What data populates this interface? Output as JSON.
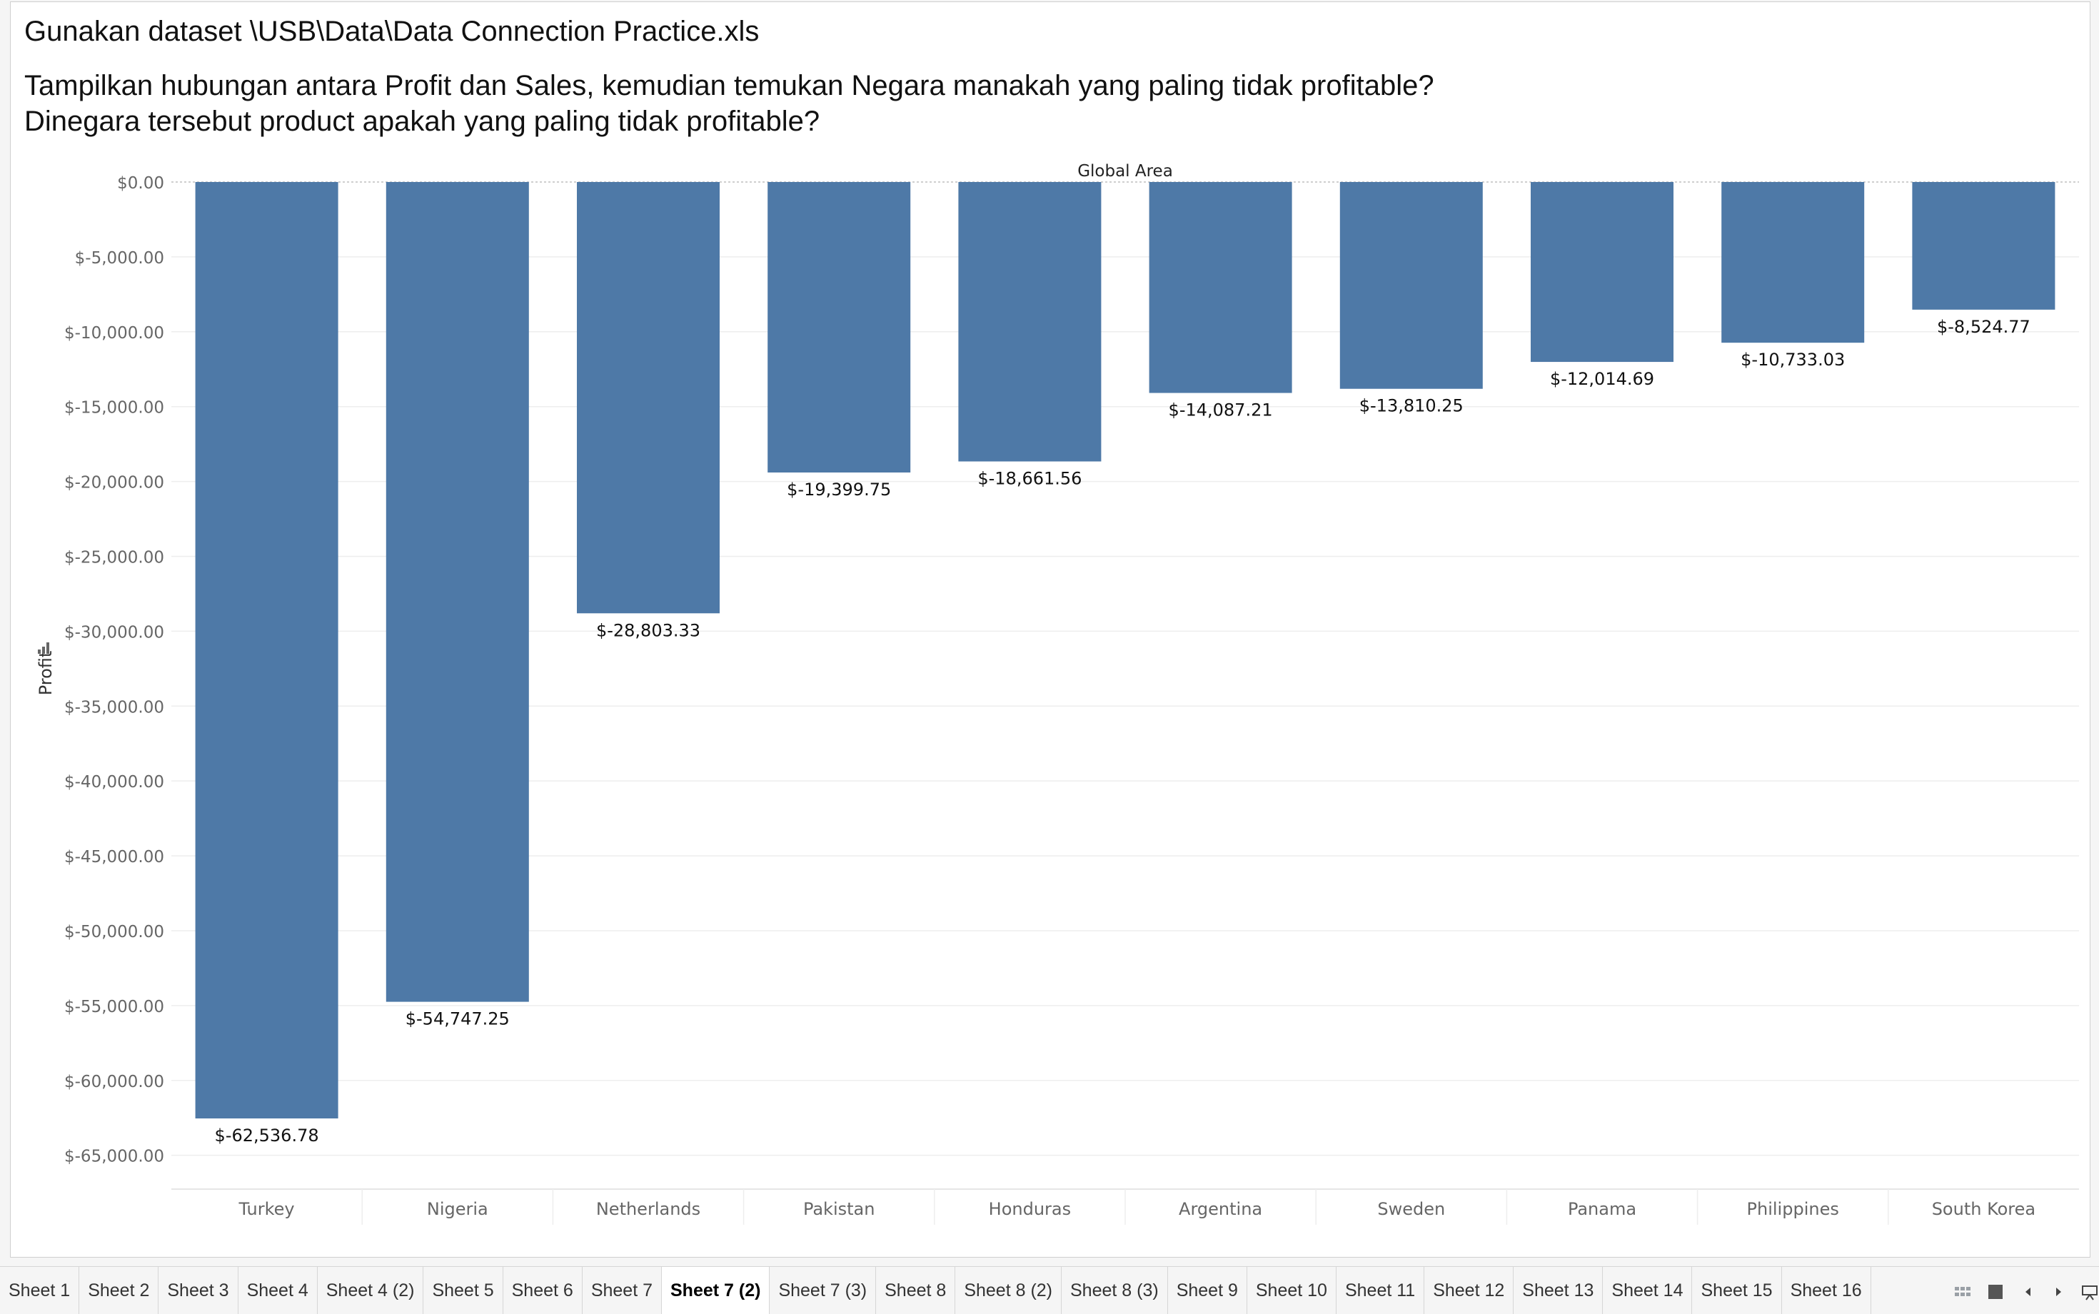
{
  "sheet": {
    "title_line1": "Gunakan dataset \\USB\\Data\\Data Connection Practice.xls",
    "title_line2": "Tampilkan hubungan antara Profit dan Sales, kemudian temukan Negara manakah yang paling tidak profitable?",
    "title_line3": "Dinegara tersebut product apakah yang paling tidak profitable?"
  },
  "chart_data": {
    "type": "bar",
    "header": "Global Area",
    "ylabel": "Profit",
    "xlabel": "",
    "ylim": [
      -67000,
      0
    ],
    "yticks": [
      0,
      -5000,
      -10000,
      -15000,
      -20000,
      -25000,
      -30000,
      -35000,
      -40000,
      -45000,
      -50000,
      -55000,
      -60000,
      -65000
    ],
    "ytick_labels": [
      "$0.00",
      "$-5,000.00",
      "$-10,000.00",
      "$-15,000.00",
      "$-20,000.00",
      "$-25,000.00",
      "$-30,000.00",
      "$-35,000.00",
      "$-40,000.00",
      "$-45,000.00",
      "$-50,000.00",
      "$-55,000.00",
      "$-60,000.00",
      "$-65,000.00"
    ],
    "categories": [
      "Turkey",
      "Nigeria",
      "Netherlands",
      "Pakistan",
      "Honduras",
      "Argentina",
      "Sweden",
      "Panama",
      "Philippines",
      "South Korea"
    ],
    "values": [
      -62536.78,
      -54747.25,
      -28803.33,
      -19399.75,
      -18661.56,
      -14087.21,
      -13810.25,
      -12014.69,
      -10733.03,
      -8524.77
    ],
    "value_labels": [
      "$-62,536.78",
      "$-54,747.25",
      "$-28,803.33",
      "$-19,399.75",
      "$-18,661.56",
      "$-14,087.21",
      "$-13,810.25",
      "$-12,014.69",
      "$-10,733.03",
      "$-8,524.77"
    ],
    "grid": true,
    "bar_color": "#4e79a7"
  },
  "tabs": [
    "Sheet 1",
    "Sheet 2",
    "Sheet 3",
    "Sheet 4",
    "Sheet 4 (2)",
    "Sheet 5",
    "Sheet 6",
    "Sheet 7",
    "Sheet 7 (2)",
    "Sheet 7 (3)",
    "Sheet 8",
    "Sheet 8 (2)",
    "Sheet 8 (3)",
    "Sheet 9",
    "Sheet 10",
    "Sheet 11",
    "Sheet 12",
    "Sheet 13",
    "Sheet 14",
    "Sheet 15",
    "Sheet 16"
  ],
  "active_tab_index": 8
}
